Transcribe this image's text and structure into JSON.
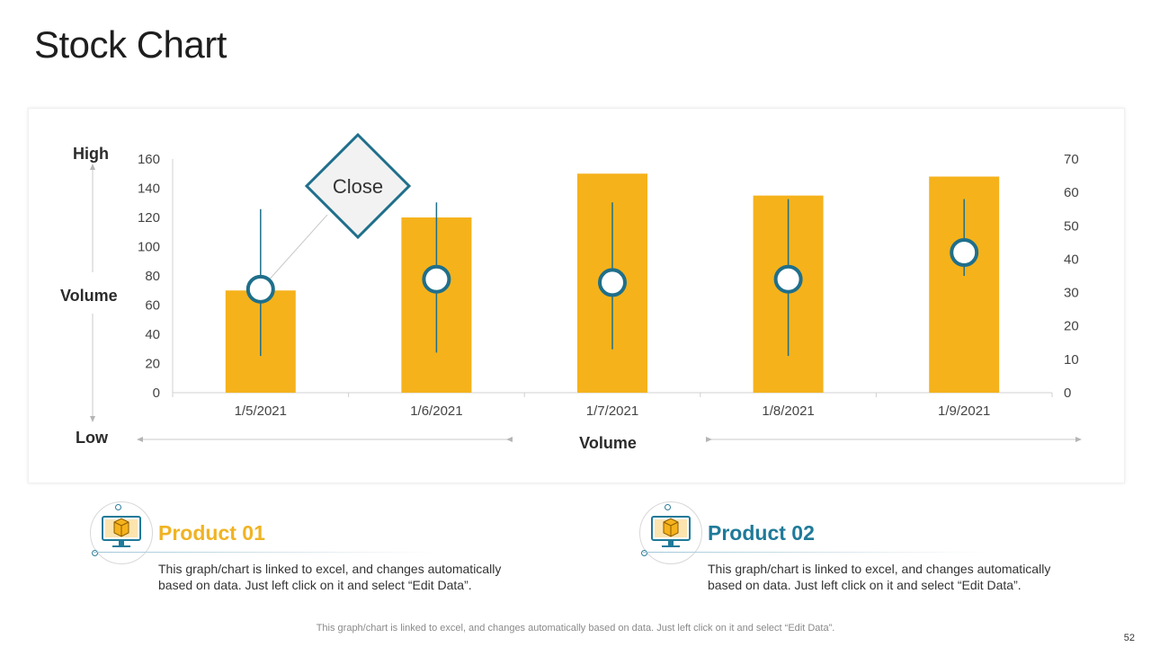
{
  "slide": {
    "title": "Stock Chart",
    "footer": "This graph/chart is linked to excel, and changes automatically based on data. Just left click on it and select “Edit Data”.",
    "page_number": "52"
  },
  "labels": {
    "high": "High",
    "volume_left": "Volume",
    "low": "Low"
  },
  "chart_data": {
    "type": "bar",
    "subtype": "stock-volume-high-low-close",
    "categories": [
      "1/5/2021",
      "1/6/2021",
      "1/7/2021",
      "1/8/2021",
      "1/9/2021"
    ],
    "series": [
      {
        "name": "Volume",
        "axis": "left",
        "values": [
          70,
          120,
          150,
          135,
          148
        ]
      },
      {
        "axis": "right",
        "high": [
          55,
          57,
          57,
          58,
          58
        ]
      },
      {
        "axis": "right",
        "low": [
          11,
          12,
          13,
          11,
          35
        ]
      },
      {
        "axis": "right",
        "close": [
          31,
          34,
          33,
          34,
          42
        ]
      }
    ],
    "y_left": {
      "min": 0,
      "max": 160,
      "ticks": [
        "0",
        "20",
        "40",
        "60",
        "80",
        "100",
        "120",
        "140",
        "160"
      ]
    },
    "y_right": {
      "min": 0,
      "max": 70,
      "ticks": [
        "0",
        "10",
        "20",
        "30",
        "40",
        "50",
        "60",
        "70"
      ]
    },
    "xlabel": "Volume",
    "annotation": "Close",
    "grid": false,
    "colors": {
      "bar": "#F5B21B",
      "line": "#1F6F8B",
      "marker_stroke": "#1F6F8B",
      "callout_fill": "#F2F2F2",
      "callout_stroke": "#1F6F8B",
      "axis": "#d0d0d0",
      "text": "#444444"
    }
  },
  "products": [
    {
      "title": "Product 01",
      "color": "#F0B323",
      "description": "This graph/chart is linked to excel, and changes automatically based on data. Just left click on it and select “Edit Data”.",
      "icon": "monitor-box-icon"
    },
    {
      "title": "Product 02",
      "color": "#1F7A99",
      "description": "This graph/chart is linked to excel, and changes automatically based on data. Just left click on it and select “Edit Data”.",
      "icon": "monitor-box-icon"
    }
  ]
}
